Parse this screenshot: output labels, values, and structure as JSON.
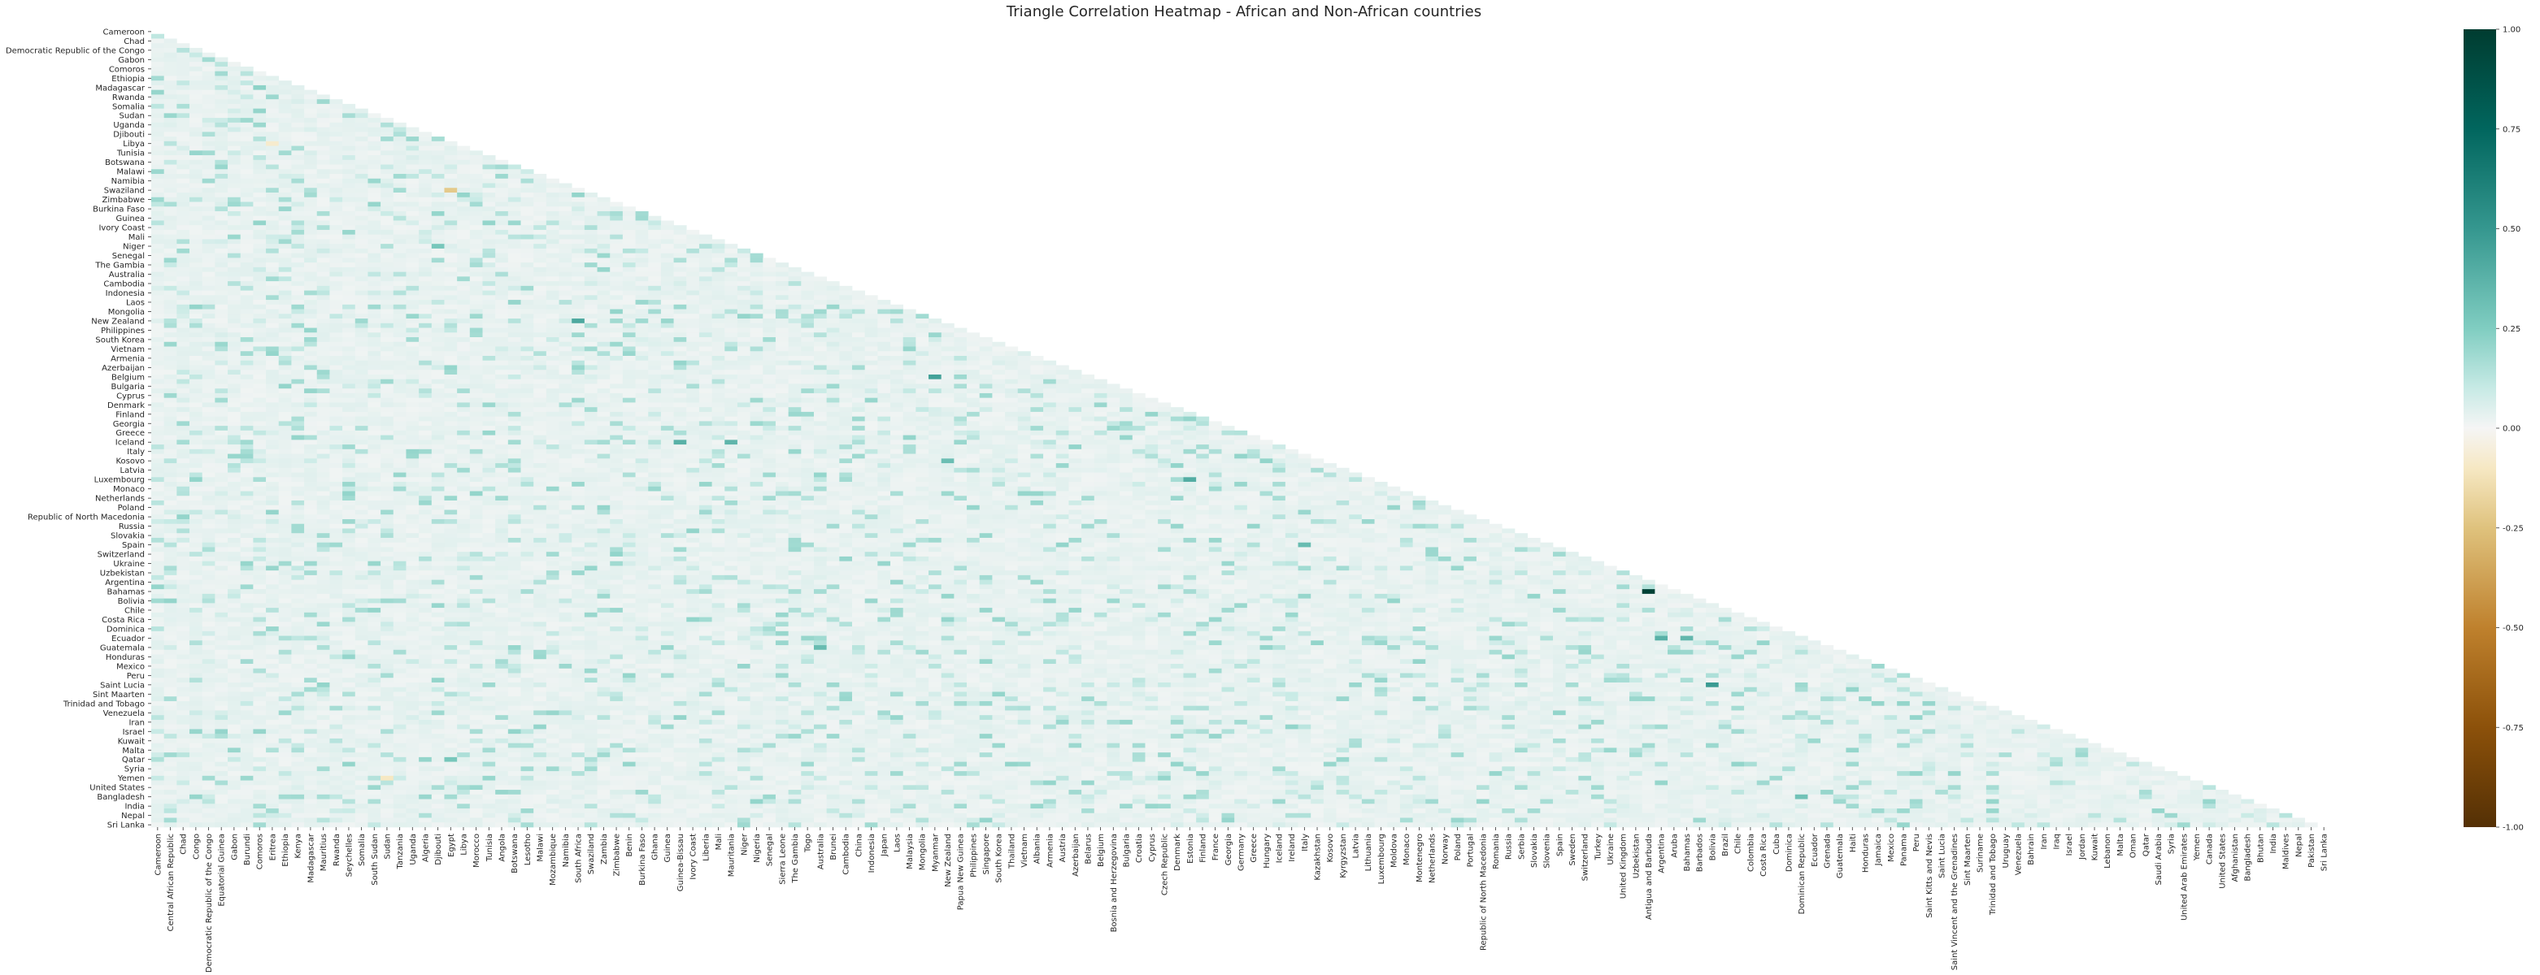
{
  "chart_data": {
    "type": "heatmap",
    "title": "Triangle Correlation Heatmap - African and Non-African countries",
    "mask": "upper-triangle",
    "colormap": "BrBG",
    "vmin": -1.0,
    "vmax": 1.0,
    "colorbar_ticks": [
      "1.00",
      "0.75",
      "0.50",
      "0.25",
      "0.00",
      "-0.25",
      "-0.50",
      "-0.75",
      "-1.00"
    ],
    "colorbar_tick_values": [
      1.0,
      0.75,
      0.5,
      0.25,
      0.0,
      -0.25,
      -0.5,
      -0.75,
      -1.0
    ],
    "baseline_value": 0.03,
    "countries": [
      "Cameroon",
      "Central African Republic",
      "Chad",
      "Congo",
      "Democratic Republic of the Congo",
      "Equatorial Guinea",
      "Gabon",
      "Burundi",
      "Comoros",
      "Eritrea",
      "Ethiopia",
      "Kenya",
      "Madagascar",
      "Mauritius",
      "Rwanda",
      "Seychelles",
      "Somalia",
      "South Sudan",
      "Sudan",
      "Tanzania",
      "Uganda",
      "Algeria",
      "Djibouti",
      "Egypt",
      "Libya",
      "Morocco",
      "Tunisia",
      "Angola",
      "Botswana",
      "Lesotho",
      "Malawi",
      "Mozambique",
      "Namibia",
      "South Africa",
      "Swaziland",
      "Zambia",
      "Zimbabwe",
      "Benin",
      "Burkina Faso",
      "Ghana",
      "Guinea",
      "Guinea-Bissau",
      "Ivory Coast",
      "Liberia",
      "Mali",
      "Mauritania",
      "Niger",
      "Nigeria",
      "Senegal",
      "Sierra Leone",
      "The Gambia",
      "Togo",
      "Australia",
      "Brunei",
      "Cambodia",
      "China",
      "Indonesia",
      "Japan",
      "Laos",
      "Malaysia",
      "Mongolia",
      "Myanmar",
      "New Zealand",
      "Papua New Guinea",
      "Philippines",
      "Singapore",
      "South Korea",
      "Thailand",
      "Vietnam",
      "Albania",
      "Armenia",
      "Austria",
      "Azerbaijan",
      "Belarus",
      "Belgium",
      "Bosnia and Herzegovina",
      "Bulgaria",
      "Croatia",
      "Cyprus",
      "Czech Republic",
      "Denmark",
      "Estonia",
      "Finland",
      "France",
      "Georgia",
      "Germany",
      "Greece",
      "Hungary",
      "Iceland",
      "Ireland",
      "Italy",
      "Kazakhstan",
      "Kosovo",
      "Kyrgyzstan",
      "Latvia",
      "Lithuania",
      "Luxembourg",
      "Moldova",
      "Monaco",
      "Montenegro",
      "Netherlands",
      "Norway",
      "Poland",
      "Portugal",
      "Republic of North Macedonia",
      "Romania",
      "Russia",
      "Serbia",
      "Slovakia",
      "Slovenia",
      "Spain",
      "Sweden",
      "Switzerland",
      "Turkey",
      "Ukraine",
      "United Kingdom",
      "Uzbekistan",
      "Antigua and Barbuda",
      "Argentina",
      "Aruba",
      "Bahamas",
      "Barbados",
      "Bolivia",
      "Brazil",
      "Chile",
      "Colombia",
      "Costa Rica",
      "Cuba",
      "Dominica",
      "Dominican Republic",
      "Ecuador",
      "Grenada",
      "Guatemala",
      "Haiti",
      "Honduras",
      "Jamaica",
      "Mexico",
      "Panama",
      "Peru",
      "Saint Kitts and Nevis",
      "Saint Lucia",
      "Saint Vincent and the Grenadines",
      "Sint Maarten",
      "Suriname",
      "Trinidad and Tobago",
      "Uruguay",
      "Venezuela",
      "Bahrain",
      "Iran",
      "Iraq",
      "Israel",
      "Jordan",
      "Kuwait",
      "Lebanon",
      "Malta",
      "Oman",
      "Qatar",
      "Saudi Arabia",
      "Syria",
      "United Arab Emirates",
      "Yemen",
      "Canada",
      "United States",
      "Afghanistan",
      "Bangladesh",
      "Bhutan",
      "India",
      "Maldives",
      "Nepal",
      "Pakistan",
      "Sri Lanka"
    ],
    "highlights": [
      {
        "row": "Bahamas",
        "col": "Antigua and Barbuda",
        "value": 0.97
      },
      {
        "row": "New Zealand",
        "col": "South Africa",
        "value": 0.42
      },
      {
        "row": "Belgium",
        "col": "Myanmar",
        "value": 0.45
      },
      {
        "row": "Iceland",
        "col": "Guinea-Bissau",
        "value": 0.38
      },
      {
        "row": "Iceland",
        "col": "Mauritania",
        "value": 0.36
      },
      {
        "row": "Saint Lucia",
        "col": "Bolivia",
        "value": 0.48
      },
      {
        "row": "Ecuador",
        "col": "Argentina",
        "value": 0.38
      },
      {
        "row": "Luxembourg",
        "col": "Estonia",
        "value": 0.4
      },
      {
        "row": "Guatemala",
        "col": "Australia",
        "value": 0.33
      },
      {
        "row": "Ecuador",
        "col": "Bahamas",
        "value": 0.35
      },
      {
        "row": "Bulgaria",
        "col": "Croatia",
        "value": 0.35
      },
      {
        "row": "Kosovo",
        "col": "New Zealand",
        "value": 0.32
      },
      {
        "row": "Spain",
        "col": "Italy",
        "value": 0.33
      },
      {
        "row": "Bangladesh",
        "col": "Dominican Republic",
        "value": 0.3
      },
      {
        "row": "Niger",
        "col": "Djibouti",
        "value": 0.28
      },
      {
        "row": "Qatar",
        "col": "Egypt",
        "value": 0.28
      },
      {
        "row": "Swaziland",
        "col": "Egypt",
        "value": -0.22
      },
      {
        "row": "Madagascar",
        "col": "Comoros",
        "value": 0.22
      },
      {
        "row": "Yemen",
        "col": "Sudan",
        "value": -0.1
      },
      {
        "row": "Libya",
        "col": "Eritrea",
        "value": -0.08
      }
    ]
  }
}
